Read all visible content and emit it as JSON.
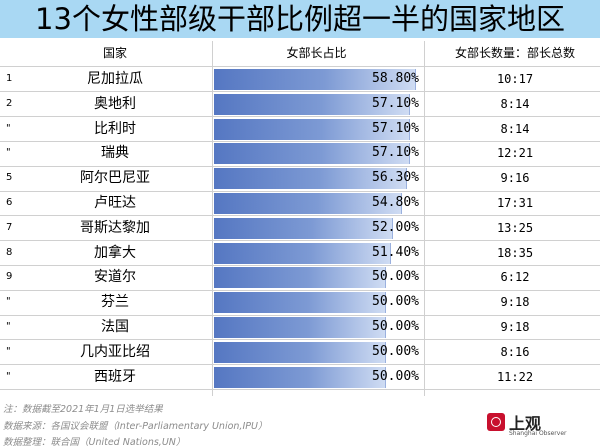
{
  "title": "13个女性部级干部比例超一半的国家地区",
  "headers": {
    "country": "国家",
    "pct": "女部长占比",
    "ratio": "女部长数量：部长总数"
  },
  "chart_data": {
    "type": "bar",
    "orientation": "horizontal",
    "title": "13个女性部级干部比例超一半的国家地区",
    "ylabel": "女部长占比",
    "xlim": [
      0,
      100
    ],
    "categories": [
      "尼加拉瓜",
      "奥地利",
      "比利时",
      "瑞典",
      "阿尔巴尼亚",
      "卢旺达",
      "哥斯达黎加",
      "加拿大",
      "安道尔",
      "芬兰",
      "法国",
      "几内亚比绍",
      "西班牙"
    ],
    "values": [
      58.8,
      57.1,
      57.1,
      57.1,
      56.3,
      54.8,
      52.0,
      51.4,
      50.0,
      50.0,
      50.0,
      50.0,
      50.0
    ],
    "value_labels": [
      "58.80%",
      "57.10%",
      "57.10%",
      "57.10%",
      "56.30%",
      "54.80%",
      "52.00%",
      "51.40%",
      "50.00%",
      "50.00%",
      "50.00%",
      "50.00%",
      "50.00%"
    ],
    "ranks": [
      "1",
      "2",
      "\"",
      "\"",
      "5",
      "6",
      "7",
      "8",
      "9",
      "\"",
      "\"",
      "\"",
      "\""
    ],
    "ratios": [
      "10:17",
      "8:14",
      "8:14",
      "12:21",
      "9:16",
      "17:31",
      "13:25",
      "18:35",
      "6:12",
      "9:18",
      "9:18",
      "8:16",
      "11:22"
    ]
  },
  "notes": [
    "注：数据截至2021年1月1日选举结果",
    "数据来源：各国议会联盟（Inter-Parliamentary Union,IPU）",
    "数据整理：联合国（United Nations,UN）"
  ],
  "logo": {
    "text": "上观",
    "sub": "Shanghai Observer",
    "color": "#c8102e"
  }
}
